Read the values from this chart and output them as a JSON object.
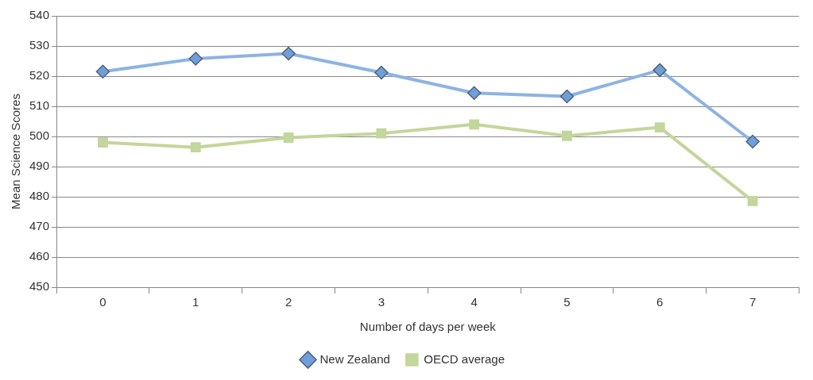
{
  "chart_data": {
    "type": "line",
    "xlabel": "Number of days per week",
    "ylabel": "Mean Science Scores",
    "categories": [
      "0",
      "1",
      "2",
      "3",
      "4",
      "5",
      "6",
      "7"
    ],
    "series": [
      {
        "name": "New Zealand",
        "color": "#8db3e2",
        "marker": "diamond",
        "values": [
          521.5,
          525.8,
          527.5,
          521.2,
          514.4,
          513.3,
          522,
          498.3
        ]
      },
      {
        "name": "OECD average",
        "color": "#c3d69b",
        "marker": "square",
        "values": [
          498,
          496.4,
          499.6,
          501,
          504,
          500.2,
          503,
          478.6
        ]
      }
    ],
    "ylim": [
      450,
      540
    ],
    "yticks": [
      450,
      460,
      470,
      480,
      490,
      500,
      510,
      520,
      530,
      540
    ],
    "grid": "y",
    "legend": "bottom",
    "line_style": "solid"
  }
}
